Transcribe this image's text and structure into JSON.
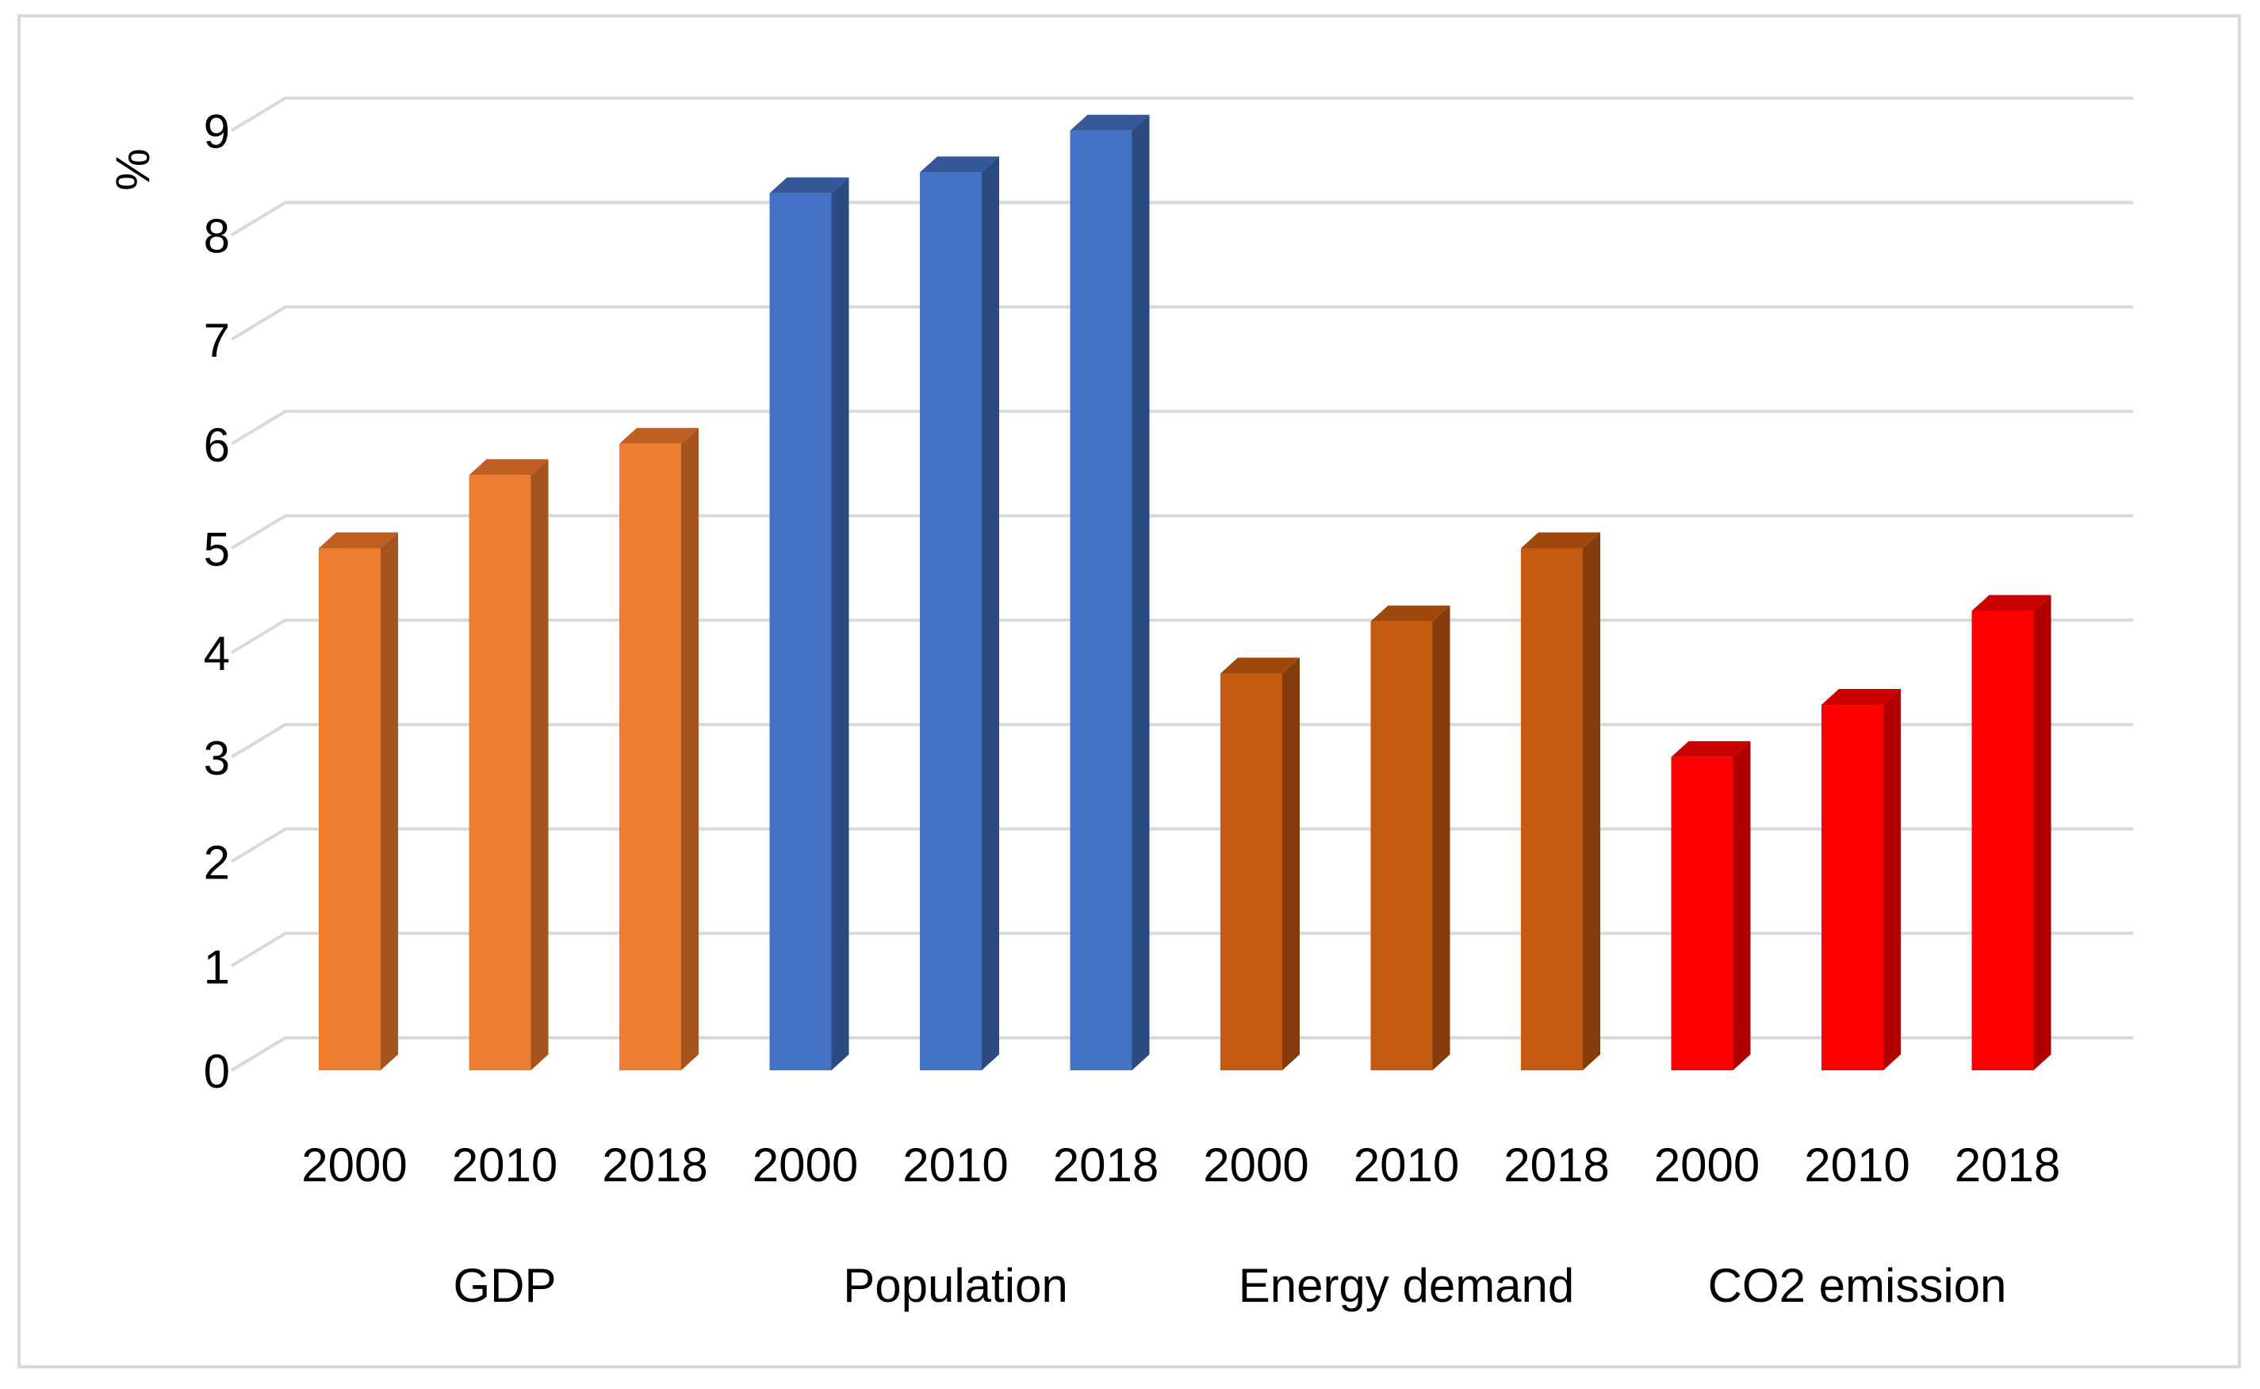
{
  "chart_data": {
    "type": "bar",
    "title": "",
    "xlabel": "",
    "ylabel": "%",
    "ylim": [
      0,
      9
    ],
    "yticks": [
      "0",
      "1",
      "2",
      "3",
      "4",
      "5",
      "6",
      "7",
      "8",
      "9"
    ],
    "grid": true,
    "legend": "none",
    "groups": [
      {
        "name": "GDP",
        "color": "#ED7D31",
        "side_color": "#A6541E",
        "top_color": "#C05F23",
        "categories": [
          "2000",
          "2010",
          "2018"
        ],
        "values": [
          5.0,
          5.7,
          6.0
        ]
      },
      {
        "name": "Population",
        "color": "#4472C4",
        "side_color": "#2B4A80",
        "top_color": "#34589A",
        "categories": [
          "2000",
          "2010",
          "2018"
        ],
        "values": [
          8.4,
          8.6,
          9.0
        ]
      },
      {
        "name": "Energy demand",
        "color": "#C55A11",
        "side_color": "#843C0B",
        "top_color": "#9E480D",
        "categories": [
          "2000",
          "2010",
          "2018"
        ],
        "values": [
          3.8,
          4.3,
          5.0
        ]
      },
      {
        "name": "CO2 emission",
        "color": "#FF0000",
        "side_color": "#B00000",
        "top_color": "#CC0000",
        "categories": [
          "2000",
          "2010",
          "2018"
        ],
        "values": [
          3.0,
          3.5,
          4.4
        ]
      }
    ]
  }
}
